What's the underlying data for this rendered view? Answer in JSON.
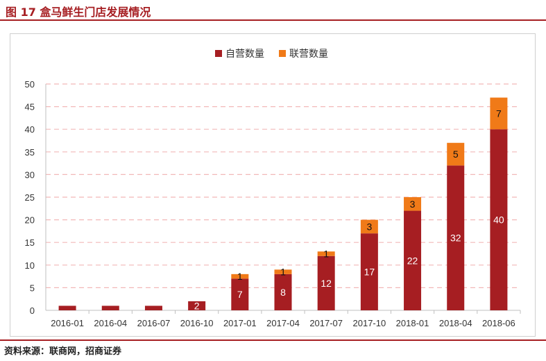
{
  "title": "图 17 盒马鲜生门店发展情况",
  "source": "资料来源：联商网，招商证券",
  "chart_data": {
    "type": "bar",
    "stacked": true,
    "categories": [
      "2016-01",
      "2016-04",
      "2016-07",
      "2016-10",
      "2017-01",
      "2017-04",
      "2017-07",
      "2017-10",
      "2018-01",
      "2018-04",
      "2018-06"
    ],
    "series": [
      {
        "name": "自营数量",
        "color": "#a61e22",
        "values": [
          1,
          1,
          1,
          2,
          7,
          8,
          12,
          17,
          22,
          32,
          40
        ]
      },
      {
        "name": "联营数量",
        "color": "#f07a18",
        "values": [
          0,
          0,
          0,
          0,
          1,
          1,
          1,
          3,
          3,
          5,
          7
        ]
      }
    ],
    "data_labels": [
      [
        null,
        null,
        null,
        "2",
        "7",
        "8",
        "12",
        "17",
        "22",
        "32",
        "40"
      ],
      [
        null,
        null,
        null,
        null,
        "1",
        "1",
        "1",
        "3",
        "3",
        "5",
        "7"
      ]
    ],
    "ylim": [
      0,
      50
    ],
    "yticks": [
      0,
      5,
      10,
      15,
      20,
      25,
      30,
      35,
      40,
      45,
      50
    ],
    "grid": true,
    "legend": "top-center"
  }
}
